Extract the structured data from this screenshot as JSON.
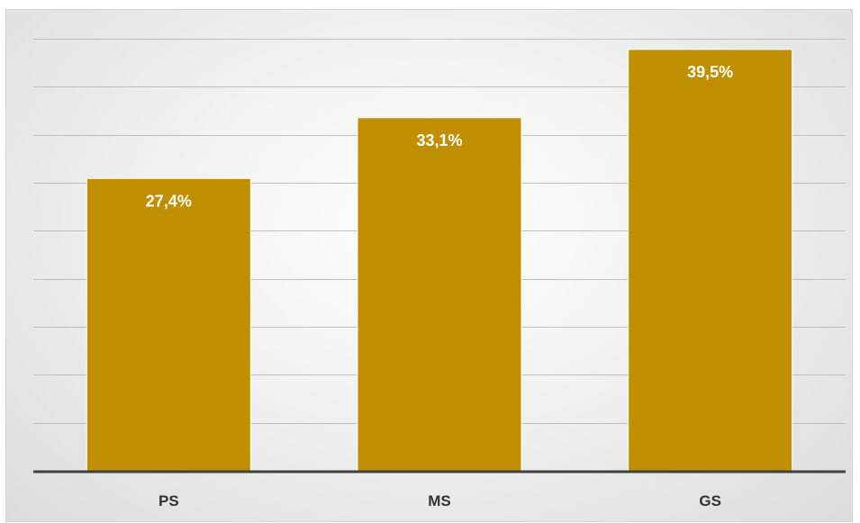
{
  "chart_data": {
    "type": "bar",
    "categories": [
      "PS",
      "MS",
      "GS"
    ],
    "values": [
      27.4,
      33.1,
      39.5
    ],
    "data_labels": [
      "27,4%",
      "33,1%",
      "39,5%"
    ],
    "title": "",
    "xlabel": "",
    "ylabel": "",
    "ylim": [
      0,
      45
    ],
    "grid": true,
    "legend": "none",
    "colors": {
      "bar": "#bf8f00",
      "bar_border": "#ffffff",
      "gridline": "#bfbfbf",
      "axis": "#404040",
      "background_center": "#ffffff",
      "background_edge": "#dcdcdc"
    }
  }
}
